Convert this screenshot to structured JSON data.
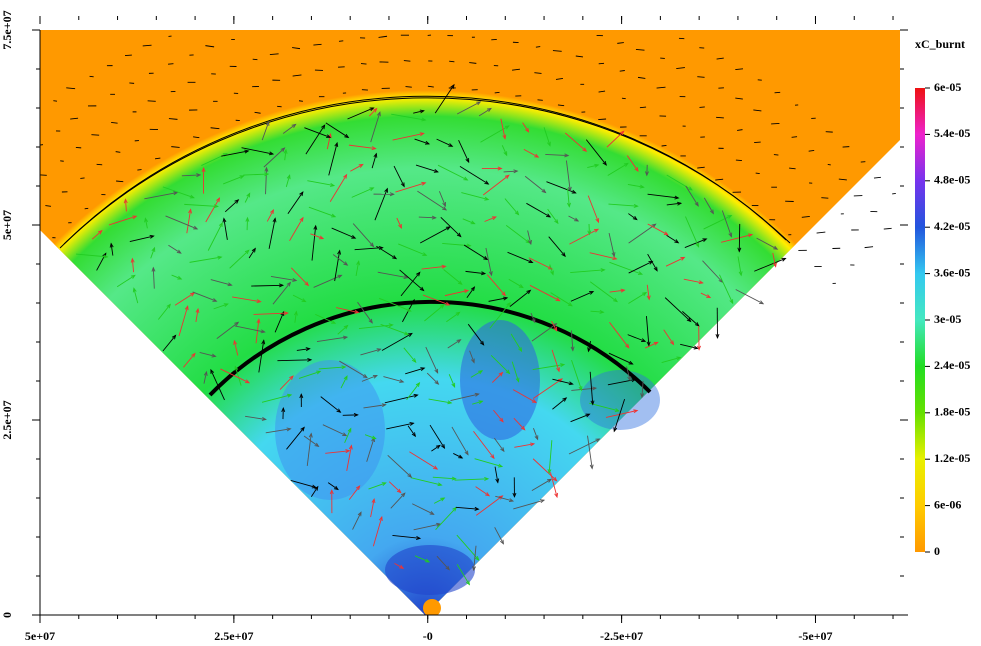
{
  "chart_data": {
    "type": "field",
    "colorbar_label": "xC_burnt",
    "xlim": [
      50000000,
      -60900000
    ],
    "ylim": [
      0,
      75000000
    ],
    "xticks": [
      {
        "value": 50000000,
        "label": "5e+07"
      },
      {
        "value": 25000000,
        "label": "2.5e+07"
      },
      {
        "value": 0,
        "label": "-0"
      },
      {
        "value": -25000000,
        "label": "-2.5e+07"
      },
      {
        "value": -50000000,
        "label": "-5e+07"
      }
    ],
    "yticks": [
      {
        "value": 0,
        "label": "0"
      },
      {
        "value": 25000000,
        "label": "2.5e+07"
      },
      {
        "value": 50000000,
        "label": "5e+07"
      },
      {
        "value": 75000000,
        "label": "7.5e+07"
      }
    ],
    "clim": [
      0,
      6e-05
    ],
    "cticks": [
      {
        "value": 0,
        "label": "0"
      },
      {
        "value": 6e-06,
        "label": "6e-06"
      },
      {
        "value": 1.2e-05,
        "label": "1.2e-05"
      },
      {
        "value": 1.8e-05,
        "label": "1.8e-05"
      },
      {
        "value": 2.4e-05,
        "label": "2.4e-05"
      },
      {
        "value": 3e-05,
        "label": "3e-05"
      },
      {
        "value": 3.6e-05,
        "label": "3.6e-05"
      },
      {
        "value": 4.2e-05,
        "label": "4.2e-05"
      },
      {
        "value": 4.8e-05,
        "label": "4.8e-05"
      },
      {
        "value": 5.4e-05,
        "label": "5.4e-05"
      },
      {
        "value": 6e-05,
        "label": "6e-05"
      }
    ],
    "colormap": [
      "#ff9900",
      "#ffcc00",
      "#e8f000",
      "#66e000",
      "#22dd22",
      "#44e8c0",
      "#33c8f0",
      "#2255dd",
      "#7733ee",
      "#ee22cc",
      "#ee1111"
    ]
  }
}
